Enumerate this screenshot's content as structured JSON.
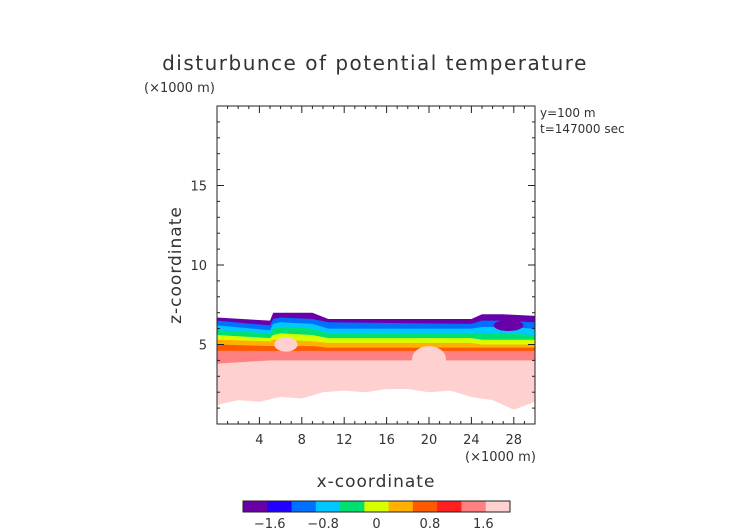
{
  "chart_data": {
    "type": "heatmap",
    "title": "disturbunce of potential temperature",
    "xlabel": "x-coordinate",
    "ylabel": "z-coordinate",
    "x_unit": "(×1000 m)",
    "y_unit": "(×1000 m)",
    "annotations": [
      "y=100 m",
      "t=147000 sec"
    ],
    "xlim": [
      0,
      30
    ],
    "ylim": [
      0,
      20
    ],
    "x_ticks": [
      4,
      8,
      12,
      16,
      20,
      24,
      28
    ],
    "y_ticks": [
      5,
      10,
      15
    ],
    "colorbar": {
      "min": -2.0,
      "max": 2.0,
      "ticks": [
        -1.6,
        -0.8,
        0,
        0.8,
        1.6
      ],
      "tick_labels": [
        "−1.6",
        "−0.8",
        "0",
        "0.8",
        "1.6"
      ],
      "colors": [
        "#6a00a8",
        "#2200ff",
        "#0070ff",
        "#00c8ff",
        "#00e070",
        "#d8ff00",
        "#ffb000",
        "#ff5a00",
        "#ff2020",
        "#ff8080",
        "#ffd0d0"
      ]
    },
    "bands": [
      {
        "value": -1.8,
        "x": [
          0,
          5,
          5.3,
          6,
          9,
          10.5,
          24,
          25,
          27,
          30
        ],
        "z": [
          6.7,
          6.5,
          7.0,
          7.0,
          7.0,
          6.6,
          6.6,
          6.9,
          6.9,
          6.8
        ]
      },
      {
        "value": -1.2,
        "x": [
          0,
          5,
          5.3,
          6,
          9,
          10.5,
          24,
          25,
          27,
          30
        ],
        "z": [
          6.5,
          6.2,
          6.6,
          6.7,
          6.6,
          6.4,
          6.3,
          6.5,
          6.5,
          6.4
        ]
      },
      {
        "value": -0.8,
        "x": [
          0,
          5,
          5.3,
          6,
          9,
          10.5,
          24,
          25,
          27,
          30
        ],
        "z": [
          6.2,
          5.9,
          6.3,
          6.4,
          6.3,
          6.0,
          6.0,
          6.1,
          6.1,
          6.0
        ]
      },
      {
        "value": -0.3,
        "x": [
          0,
          5,
          5.3,
          6,
          9,
          10.5,
          24,
          25,
          27,
          30
        ],
        "z": [
          5.9,
          5.7,
          6.0,
          6.1,
          6.0,
          5.7,
          5.7,
          5.7,
          5.7,
          5.6
        ]
      },
      {
        "value": 0.1,
        "x": [
          0,
          5,
          5.3,
          6,
          9,
          10.5,
          24,
          25,
          27,
          30
        ],
        "z": [
          5.6,
          5.4,
          5.6,
          5.7,
          5.6,
          5.4,
          5.4,
          5.3,
          5.3,
          5.3
        ]
      },
      {
        "value": 0.5,
        "x": [
          0,
          5,
          5.3,
          6,
          9,
          10.5,
          24,
          25,
          27,
          30
        ],
        "z": [
          5.3,
          5.2,
          5.3,
          5.3,
          5.2,
          5.1,
          5.1,
          5.0,
          5.0,
          5.0
        ]
      },
      {
        "value": 0.9,
        "x": [
          0,
          5,
          5.3,
          6,
          9,
          10.5,
          24,
          25,
          27,
          30
        ],
        "z": [
          5.0,
          4.9,
          4.9,
          4.9,
          4.9,
          4.8,
          4.8,
          4.8,
          4.8,
          4.8
        ]
      },
      {
        "value": 1.3,
        "x": [
          0,
          5,
          5.3,
          6,
          9,
          10.5,
          24,
          25,
          27,
          30
        ],
        "z": [
          4.6,
          4.6,
          4.6,
          4.6,
          4.6,
          4.6,
          4.6,
          4.6,
          4.6,
          4.6
        ]
      },
      {
        "value": 1.7,
        "x": [
          0,
          5,
          5.3,
          6,
          9,
          10.5,
          24,
          25,
          27,
          30
        ],
        "z": [
          3.8,
          4.0,
          4.0,
          4.0,
          4.0,
          4.0,
          4.0,
          4.0,
          4.0,
          4.0
        ]
      }
    ],
    "bottom_edge": {
      "value": 1.9,
      "x": [
        0,
        2,
        4,
        6,
        8,
        10,
        12,
        14,
        16,
        18,
        20,
        22,
        24,
        26,
        28,
        30
      ],
      "z": [
        1.2,
        1.5,
        1.4,
        1.7,
        1.6,
        2.0,
        2.1,
        2.0,
        2.2,
        2.2,
        2.0,
        2.1,
        1.7,
        1.5,
        0.9,
        1.4
      ]
    },
    "pockets": [
      {
        "value": 1.95,
        "x": 6.5,
        "z": 5.0,
        "rx": 1.1,
        "rz": 0.45
      },
      {
        "value": 1.85,
        "x": 20,
        "z": 4.1,
        "rx": 1.6,
        "rz": 0.8
      },
      {
        "value": 1.85,
        "x": 10,
        "z": 3.0,
        "rx": 2.0,
        "rz": 0.8
      },
      {
        "value": 1.85,
        "x": 28.5,
        "z": 2.2,
        "rx": 1.2,
        "rz": 0.9
      },
      {
        "value": -1.7,
        "x": 27.5,
        "z": 6.2,
        "rx": 1.4,
        "rz": 0.35
      }
    ]
  }
}
